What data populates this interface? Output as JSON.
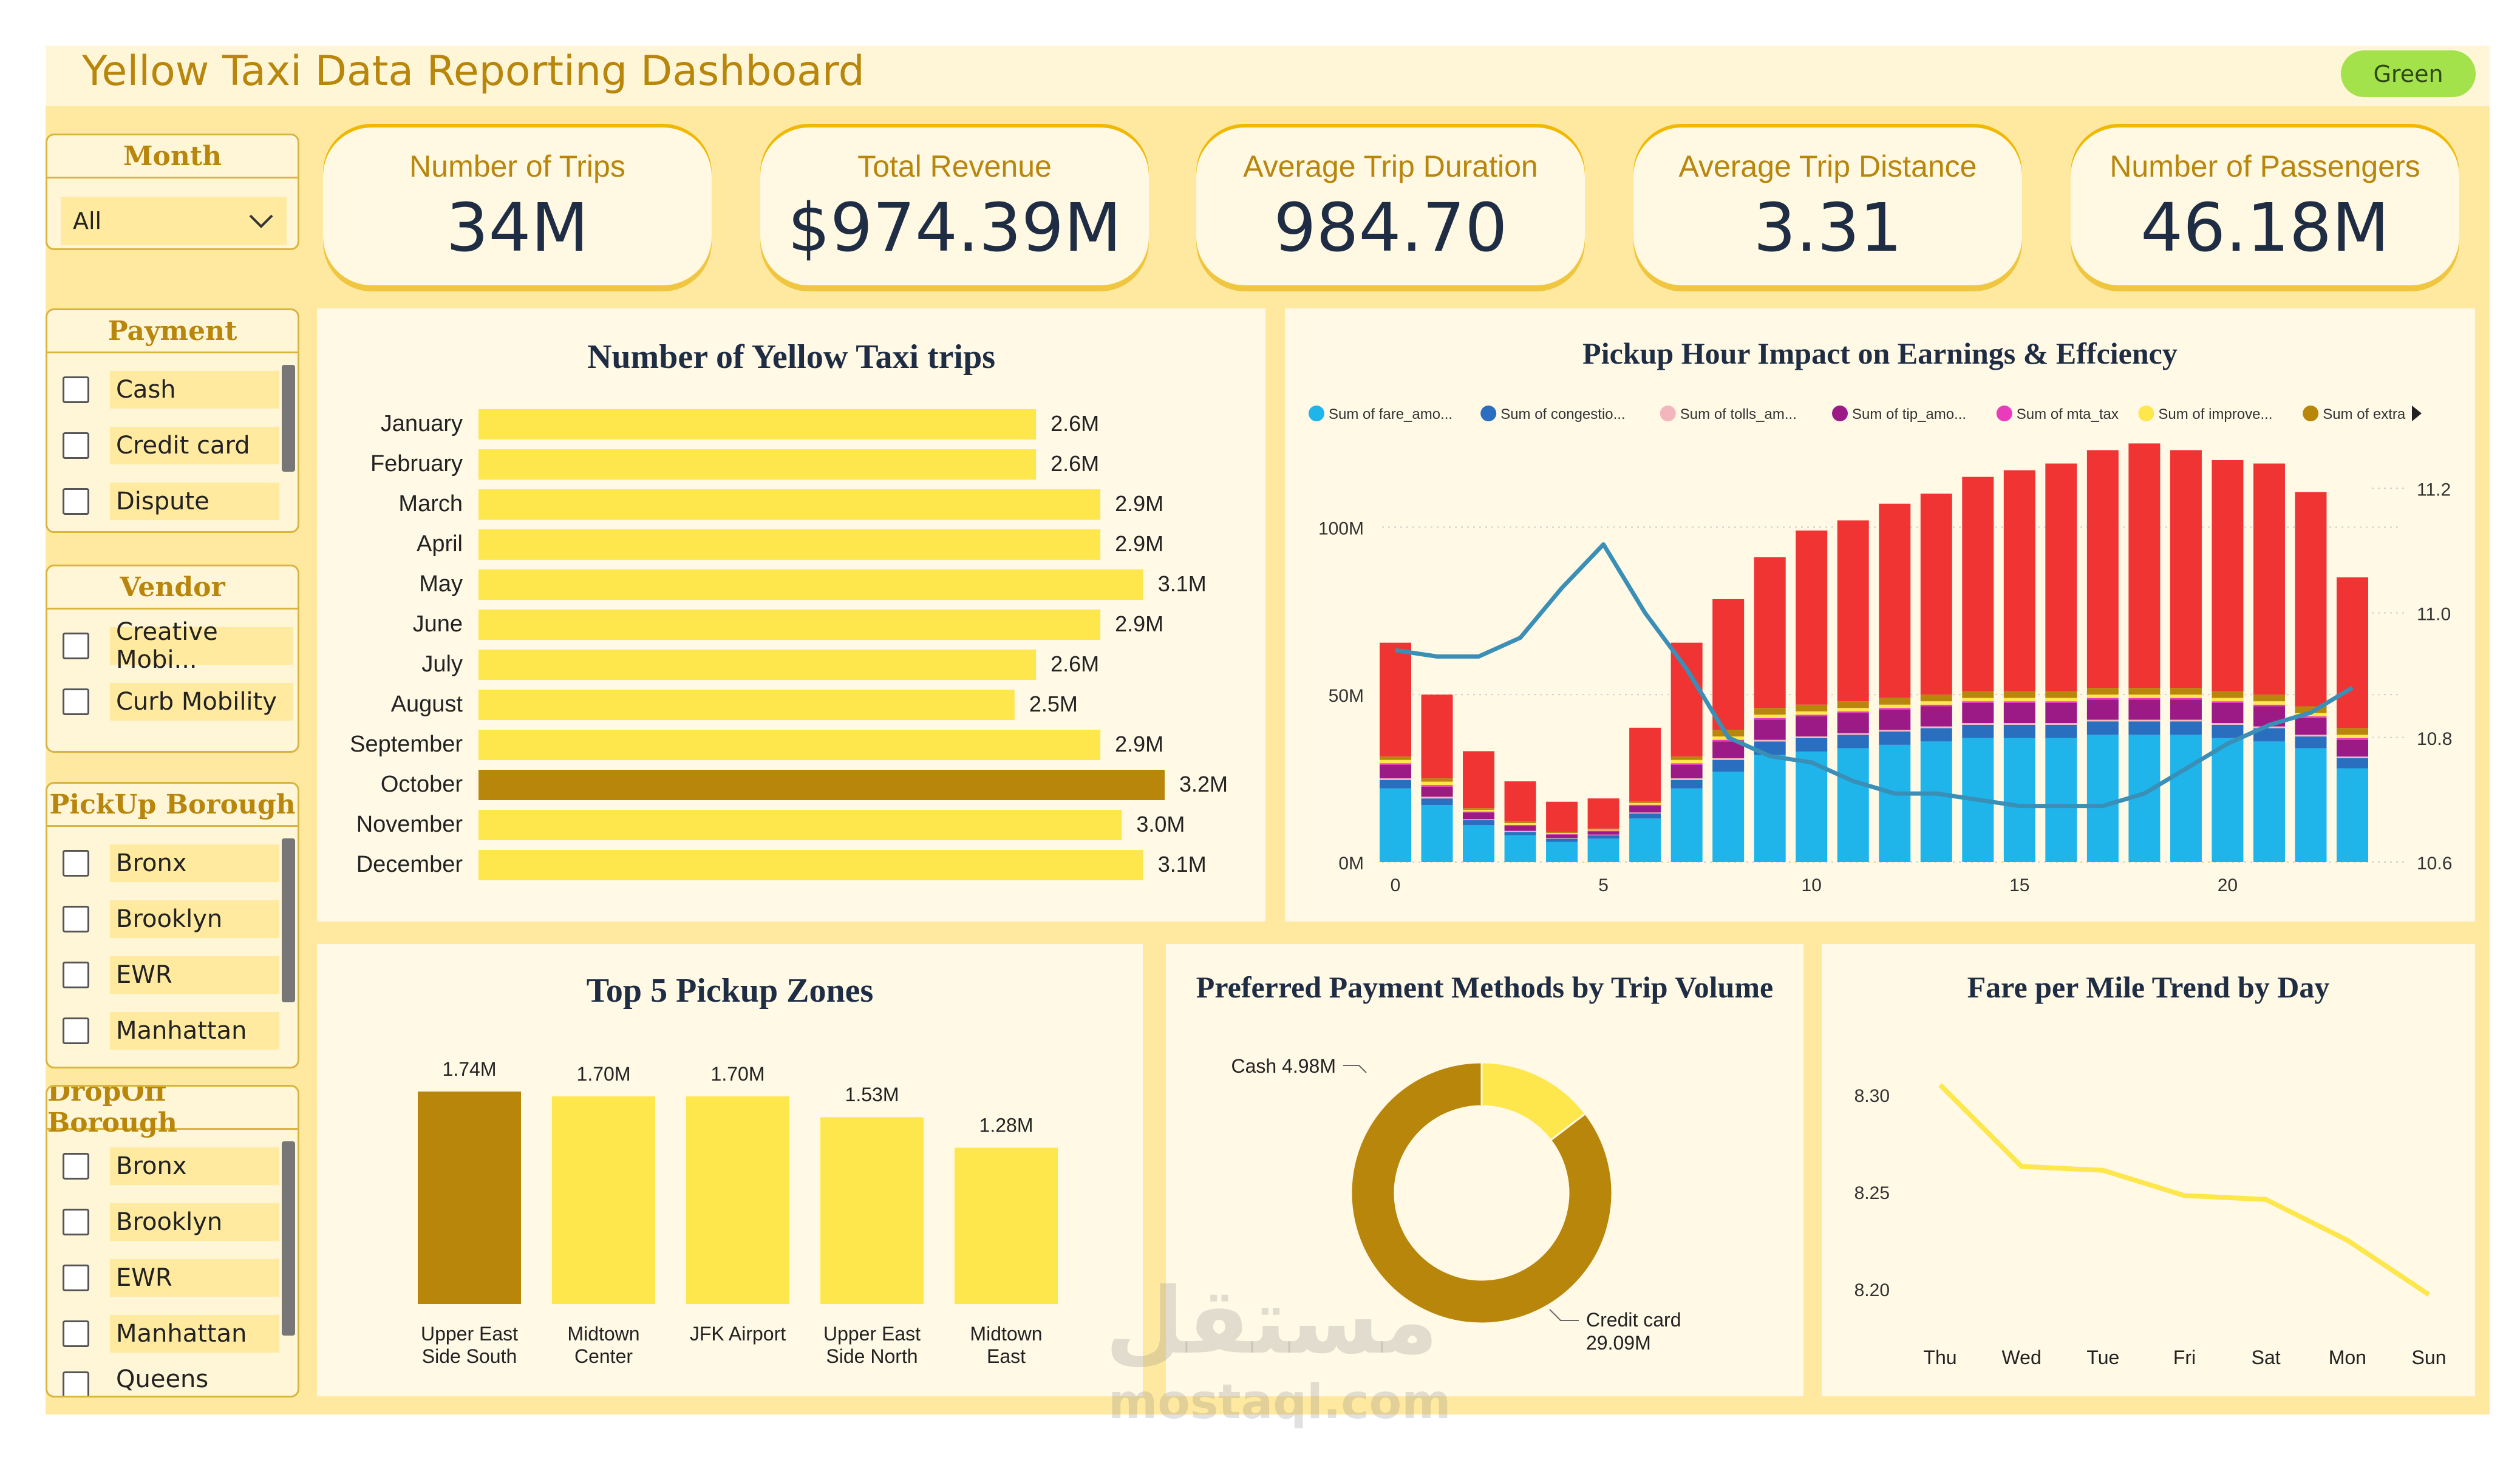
{
  "title": "Yellow Taxi Data Reporting Dashboard",
  "theme_label": "Green",
  "watermark": {
    "arabic": "مستقل",
    "latin": "mostaql.com"
  },
  "slicers": {
    "month": {
      "title": "Month",
      "value": "All"
    },
    "payment": {
      "title": "Payment",
      "items": [
        "Cash",
        "Credit card",
        "Dispute"
      ]
    },
    "vendor": {
      "title": "Vendor",
      "items": [
        "Creative Mobi...",
        "Curb Mobility"
      ]
    },
    "pickup": {
      "title": "PickUp Borough",
      "items": [
        "Bronx",
        "Brooklyn",
        "EWR",
        "Manhattan"
      ]
    },
    "dropoff": {
      "title": "DropOff Borough",
      "items": [
        "Bronx",
        "Brooklyn",
        "EWR",
        "Manhattan",
        "Queens"
      ]
    }
  },
  "kpis": [
    {
      "label": "Number of Trips",
      "value": "34M"
    },
    {
      "label": "Total Revenue",
      "value": "$974.39M"
    },
    {
      "label": "Average Trip Duration",
      "value": "984.70"
    },
    {
      "label": "Average Trip Distance",
      "value": "3.31"
    },
    {
      "label": "Number of Passengers",
      "value": "46.18M"
    }
  ],
  "colors": {
    "yellow": "#fde74c",
    "gold": "#b8860b",
    "red": "#f03434",
    "cyan": "#1fb4ea",
    "navy": "#1f2d44",
    "line": "#3a8fb7"
  },
  "chart_data": [
    {
      "type": "bar",
      "orientation": "horizontal",
      "title": "Number of Yellow Taxi trips",
      "categories": [
        "January",
        "February",
        "March",
        "April",
        "May",
        "June",
        "July",
        "August",
        "September",
        "October",
        "November",
        "December"
      ],
      "values": [
        2.6,
        2.6,
        2.9,
        2.9,
        3.1,
        2.9,
        2.6,
        2.5,
        2.9,
        3.2,
        3.0,
        3.1
      ],
      "labels": [
        "2.6M",
        "2.6M",
        "2.9M",
        "2.9M",
        "3.1M",
        "2.9M",
        "2.6M",
        "2.5M",
        "2.9M",
        "3.2M",
        "3.0M",
        "3.1M"
      ],
      "unit": "M",
      "highlight_index": 9
    },
    {
      "type": "bar",
      "stacked": true,
      "title": "Pickup Hour Impact on Earnings & Effciency",
      "x": [
        0,
        1,
        2,
        3,
        4,
        5,
        6,
        7,
        8,
        9,
        10,
        11,
        12,
        13,
        14,
        15,
        16,
        17,
        18,
        19,
        20,
        21,
        22,
        23
      ],
      "x_ticks": [
        "0",
        "5",
        "10",
        "15",
        "20"
      ],
      "y_ticks": [
        "0M",
        "50M",
        "100M"
      ],
      "y2_ticks": [
        "10.6",
        "10.8",
        "11.0",
        "11.2"
      ],
      "ylim": [
        0,
        120
      ],
      "y2lim": [
        10.6,
        11.2
      ],
      "legend_overflow_icon": "triangle-right-icon",
      "series": [
        {
          "name": "Sum of fare_amo...",
          "color": "#1fb4ea",
          "values": [
            22,
            17,
            11,
            8,
            6,
            7,
            13,
            22,
            27,
            32,
            33,
            34,
            35,
            36,
            37,
            37,
            37,
            38,
            38,
            38,
            37,
            36,
            34,
            28
          ]
        },
        {
          "name": "Sum of congestio...",
          "color": "#2a6fbf",
          "values": [
            2.5,
            2,
            1.5,
            1,
            1,
            1,
            1.5,
            2.5,
            3.5,
            4,
            4,
            4,
            4,
            4,
            4,
            4,
            4,
            4,
            4,
            4,
            4,
            4,
            3.5,
            3
          ]
        },
        {
          "name": "Sum of tolls_am...",
          "color": "#f3b6bc",
          "values": [
            0.5,
            0.5,
            0.3,
            0.3,
            0.2,
            0.2,
            0.3,
            0.5,
            0.5,
            0.5,
            0.5,
            0.5,
            0.5,
            0.5,
            0.5,
            0.5,
            0.5,
            0.5,
            0.5,
            0.5,
            0.5,
            0.5,
            0.5,
            0.5
          ]
        },
        {
          "name": "Sum of tip_amo...",
          "color": "#9c1a86",
          "values": [
            4,
            3,
            2,
            1.5,
            1,
            1,
            2,
            4,
            5,
            6,
            6,
            6,
            6,
            6,
            6,
            6,
            6,
            6,
            6,
            6,
            6,
            6,
            5,
            5
          ]
        },
        {
          "name": "Sum of mta_tax",
          "color": "#e83cbc",
          "values": [
            0.5,
            0.5,
            0.3,
            0.3,
            0.2,
            0.2,
            0.3,
            0.5,
            0.5,
            0.5,
            0.5,
            0.5,
            0.5,
            0.5,
            0.5,
            0.5,
            0.5,
            0.5,
            0.5,
            0.5,
            0.5,
            0.5,
            0.5,
            0.5
          ]
        },
        {
          "name": "Sum of improve...",
          "color": "#fde74c",
          "values": [
            1,
            1,
            0.5,
            0.5,
            0.3,
            0.3,
            0.5,
            1,
            1,
            1,
            1,
            1,
            1,
            1,
            1,
            1,
            1,
            1,
            1,
            1,
            1,
            1,
            1,
            1
          ]
        },
        {
          "name": "Sum of extra",
          "color": "#b8860b",
          "values": [
            1,
            1,
            0.5,
            0.5,
            0.3,
            0.3,
            0.5,
            1,
            2,
            2,
            2,
            2,
            2,
            2,
            2,
            2,
            2,
            2,
            2,
            2,
            2,
            2,
            2,
            2
          ]
        },
        {
          "name": "",
          "color": "#f03434",
          "values": [
            34,
            25,
            17,
            12,
            9,
            9,
            22,
            34,
            39,
            45,
            52,
            54,
            58,
            60,
            64,
            66,
            68,
            71,
            73,
            71,
            69,
            69,
            64,
            45
          ]
        }
      ],
      "line": {
        "axis": "secondary",
        "color": "#3a8fb7",
        "values": [
          10.94,
          10.93,
          10.93,
          10.96,
          11.04,
          11.11,
          11.0,
          10.91,
          10.8,
          10.77,
          10.76,
          10.73,
          10.71,
          10.71,
          10.7,
          10.69,
          10.69,
          10.69,
          10.71,
          10.75,
          10.79,
          10.82,
          10.84,
          10.88
        ]
      }
    },
    {
      "type": "bar",
      "title": "Top 5 Pickup Zones",
      "categories": [
        "Upper East Side South",
        "Midtown Center",
        "JFK Airport",
        "Upper East Side North",
        "Midtown East"
      ],
      "category_lines": [
        [
          "Upper East",
          "Side South"
        ],
        [
          "Midtown",
          "Center"
        ],
        [
          "JFK Airport"
        ],
        [
          "Upper East",
          "Side North"
        ],
        [
          "Midtown",
          "East"
        ]
      ],
      "values": [
        1.74,
        1.7,
        1.7,
        1.53,
        1.28
      ],
      "labels": [
        "1.74M",
        "1.70M",
        "1.70M",
        "1.53M",
        "1.28M"
      ],
      "unit": "M",
      "highlight_index": 0
    },
    {
      "type": "pie",
      "donut": true,
      "title": "Preferred Payment Methods by Trip Volume",
      "slices": [
        {
          "label": "Cash",
          "value": 4.98,
          "display": "Cash 4.98M",
          "color": "#fde74c"
        },
        {
          "label": "Credit card",
          "value": 29.09,
          "display_lines": [
            "Credit card",
            "29.09M"
          ],
          "color": "#b8860b"
        }
      ]
    },
    {
      "type": "line",
      "title": "Fare per Mile Trend by Day",
      "x": [
        "Thu",
        "Wed",
        "Tue",
        "Fri",
        "Sat",
        "Mon",
        "Sun"
      ],
      "values": [
        8.305,
        8.263,
        8.261,
        8.248,
        8.246,
        8.225,
        8.197
      ],
      "y_ticks": [
        "8.20",
        "8.25",
        "8.30"
      ],
      "ylim": [
        8.19,
        8.315
      ],
      "color": "#fde74c"
    }
  ]
}
